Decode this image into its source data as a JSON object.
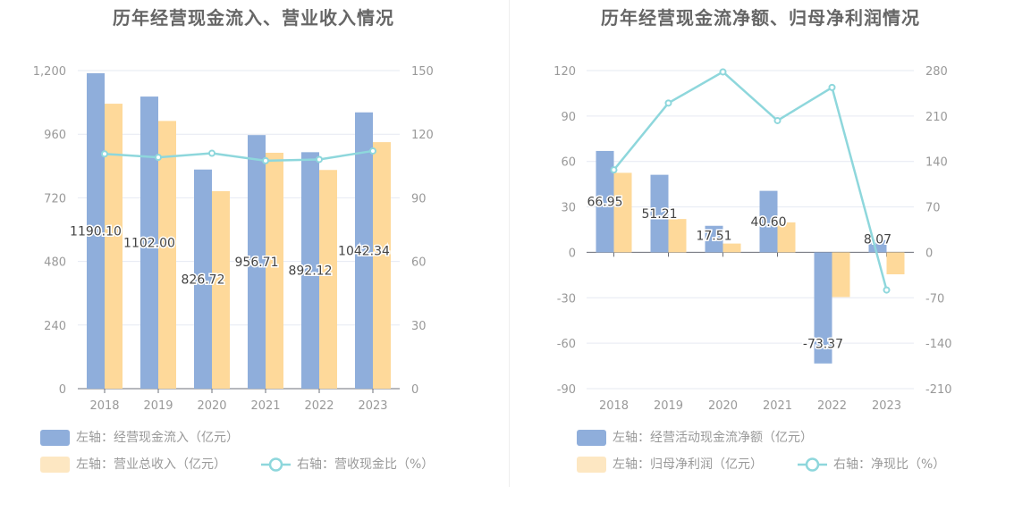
{
  "left": {
    "title": "历年经营现金流入、营业收入情况",
    "legend": [
      {
        "label": "左轴：经营现金流入（亿元）",
        "color": "#8faedb",
        "kind": "bar"
      },
      {
        "label": "左轴：营业总收入（亿元）",
        "color": "#fde7c2",
        "kind": "bar"
      },
      {
        "label": "右轴：营收现金比（%）",
        "color": "#8ed7dc",
        "kind": "line"
      }
    ]
  },
  "right": {
    "title": "历年经营现金流净额、归母净利润情况",
    "legend": [
      {
        "label": "左轴：经营活动现金流净额（亿元）",
        "color": "#8faedb",
        "kind": "bar"
      },
      {
        "label": "左轴：归母净利润（亿元）",
        "color": "#fde7c2",
        "kind": "bar"
      },
      {
        "label": "右轴：净现比（%）",
        "color": "#8ed7dc",
        "kind": "line"
      }
    ]
  },
  "chart_data": [
    {
      "type": "bar",
      "title": "历年经营现金流入、营业收入情况",
      "categories": [
        "2018",
        "2019",
        "2020",
        "2021",
        "2022",
        "2023"
      ],
      "left_axis": {
        "min": 0,
        "max": 1200,
        "ticks": [
          "0",
          "240",
          "480",
          "720",
          "960",
          "1,200"
        ],
        "tick_values": [
          0,
          240,
          480,
          720,
          960,
          1200
        ]
      },
      "right_axis": {
        "min": 0,
        "max": 150,
        "ticks": [
          "0",
          "30",
          "60",
          "90",
          "120",
          "150"
        ],
        "tick_values": [
          0,
          30,
          60,
          90,
          120,
          150
        ]
      },
      "series": [
        {
          "name": "左轴：经营现金流入（亿元）",
          "axis": "left",
          "type": "bar",
          "values": [
            1190.1,
            1102.0,
            826.72,
            956.71,
            892.12,
            1042.34
          ],
          "labels": [
            "1190.10",
            "1102.00",
            "826.72",
            "956.71",
            "892.12",
            "1042.34"
          ]
        },
        {
          "name": "左轴：营业总收入（亿元）",
          "axis": "left",
          "type": "bar",
          "values": [
            1075,
            1010,
            745,
            890,
            825,
            930
          ]
        },
        {
          "name": "右轴：营收现金比（%）",
          "axis": "right",
          "type": "line",
          "values": [
            110.7,
            109.1,
            111.0,
            107.5,
            108.1,
            112.1
          ]
        }
      ],
      "grid": true,
      "legend_position": "bottom"
    },
    {
      "type": "bar",
      "title": "历年经营现金流净额、归母净利润情况",
      "categories": [
        "2018",
        "2019",
        "2020",
        "2021",
        "2022",
        "2023"
      ],
      "left_axis": {
        "min": -90,
        "max": 120,
        "ticks": [
          "-90",
          "-60",
          "-30",
          "0",
          "30",
          "60",
          "90",
          "120"
        ],
        "tick_values": [
          -90,
          -60,
          -30,
          0,
          30,
          60,
          90,
          120
        ]
      },
      "right_axis": {
        "min": -210,
        "max": 280,
        "ticks": [
          "-210",
          "-140",
          "-70",
          "0",
          "70",
          "140",
          "210",
          "280"
        ],
        "tick_values": [
          -210,
          -140,
          -70,
          0,
          70,
          140,
          210,
          280
        ]
      },
      "series": [
        {
          "name": "左轴：经营活动现金流净额（亿元）",
          "axis": "left",
          "type": "bar",
          "values": [
            66.95,
            51.21,
            17.51,
            40.6,
            -73.37,
            8.07
          ],
          "labels": [
            "66.95",
            "51.21",
            "17.51",
            "40.60",
            "-73.37",
            "8.07"
          ]
        },
        {
          "name": "左轴：归母净利润（亿元）",
          "axis": "left",
          "type": "bar",
          "values": [
            52.5,
            22.0,
            5.8,
            19.8,
            -29.5,
            -14.5
          ]
        },
        {
          "name": "右轴：净现比（%）",
          "axis": "right",
          "type": "line",
          "values": [
            127,
            230,
            278,
            203,
            254,
            -58
          ]
        }
      ],
      "grid": true,
      "legend_position": "bottom"
    }
  ]
}
